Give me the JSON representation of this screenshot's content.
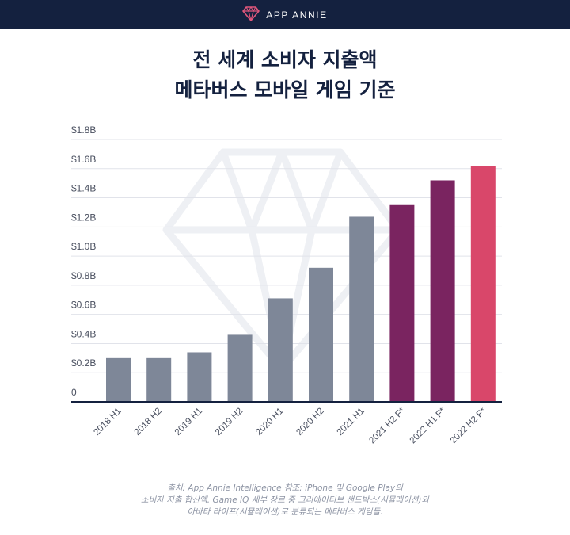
{
  "header": {
    "brand": "APP ANNIE",
    "logo_icon": "diamond-logo-icon",
    "background": "#14213f"
  },
  "title": {
    "line1": "전 세계 소비자 지출액",
    "line2": "메타버스 모바일 게임 기준"
  },
  "chart_data": {
    "type": "bar",
    "title": "전 세계 소비자 지출액 메타버스 모바일 게임 기준",
    "xlabel": "",
    "ylabel": "",
    "ylim": [
      0,
      1.8
    ],
    "yticks": [
      0,
      0.2,
      0.4,
      0.6,
      0.8,
      1.0,
      1.2,
      1.4,
      1.6,
      1.8
    ],
    "ytick_labels": [
      "0",
      "$0.2B",
      "$0.4B",
      "$0.6B",
      "$0.8B",
      "$1.0B",
      "$1.2B",
      "$1.4B",
      "$1.6B",
      "$1.8B"
    ],
    "grid": true,
    "categories": [
      "2018 H1",
      "2018 H2",
      "2019 H1",
      "2019 H2",
      "2020 H1",
      "2020 H2",
      "2021 H1",
      "2021 H2 F*",
      "2022 H1 F*",
      "2022 H2 F*"
    ],
    "values": [
      0.3,
      0.3,
      0.34,
      0.46,
      0.71,
      0.92,
      1.27,
      1.35,
      1.52,
      1.62
    ],
    "colors": [
      "#7e8798",
      "#7e8798",
      "#7e8798",
      "#7e8798",
      "#7e8798",
      "#7e8798",
      "#7e8798",
      "#7a2460",
      "#7a2460",
      "#d9476a"
    ],
    "axis_color": "#14213f",
    "grid_color": "#e1e3ea"
  },
  "source": {
    "line1": "출처: App Annie Intelligence 참조: iPhone 및 Google Play의",
    "line2": "소비자 지출 합산액. Game IQ 세부 장르 중 크리에이티브 샌드박스(시뮬레이션)와",
    "line3": "아바타 라이프(시뮬레이션)로 분류되는 메타버스 게임들."
  }
}
